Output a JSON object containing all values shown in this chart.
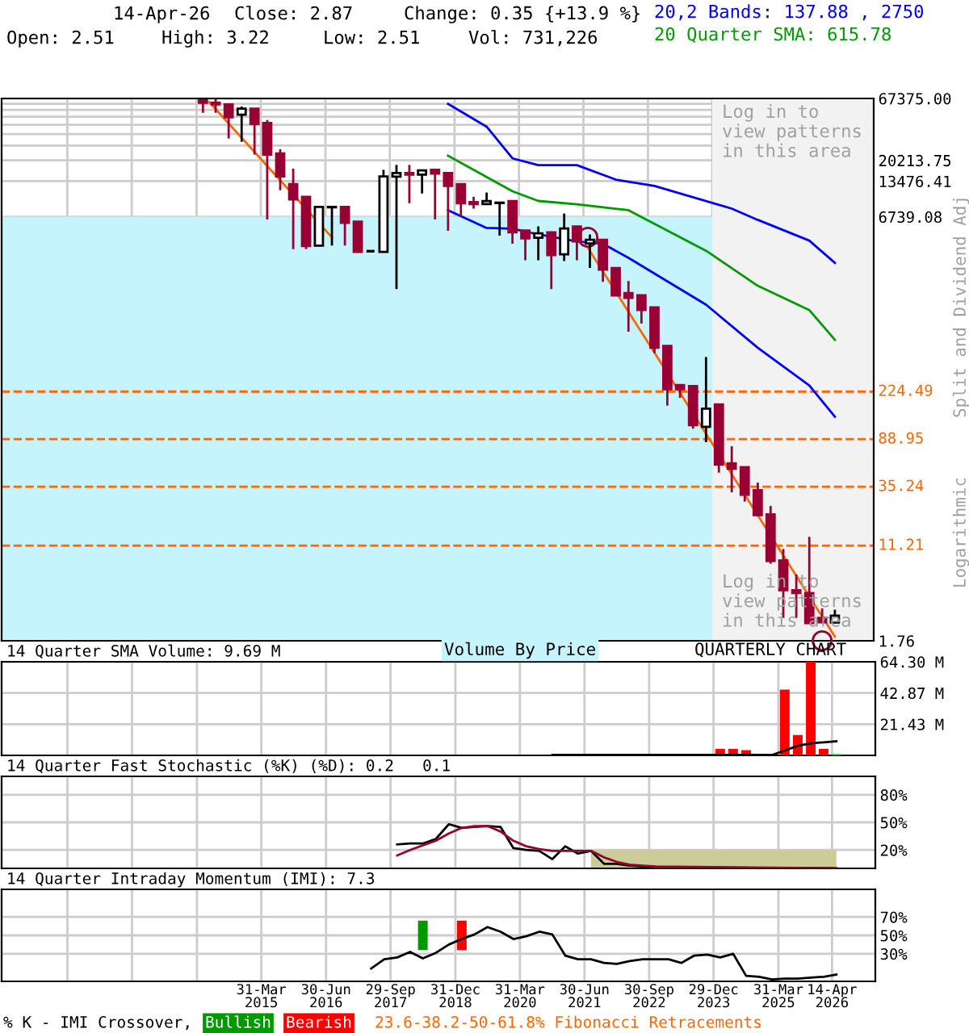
{
  "chart_data": [
    {
      "type": "candlestick",
      "log": "y",
      "grid": true,
      "tick_labels": "y",
      "xlim": [
        "2010-03-22",
        "2027-02-14"
      ],
      "ylim": [
        1.76,
        67375
      ],
      "xticks": [
        {
          "value": "2011-06-30",
          "label": null
        },
        {
          "value": "2012-09-28",
          "label": null
        },
        {
          "value": "2013-12-31",
          "label": null
        },
        {
          "value": "2015-03-31",
          "label": null
        },
        {
          "value": "2016-06-30",
          "label": null
        },
        {
          "value": "2017-09-29",
          "label": null
        },
        {
          "value": "2018-12-31",
          "label": null
        },
        {
          "value": "2020-03-31",
          "label": null
        },
        {
          "value": "2021-06-30",
          "label": null
        },
        {
          "value": "2022-09-30",
          "label": null
        },
        {
          "value": "2023-12-29",
          "label": null
        },
        {
          "value": "2025-03-31",
          "label": null
        },
        {
          "value": "2026-04-14",
          "label": null
        }
      ],
      "yticks": [
        1.76,
        6739.08,
        13476.41,
        20213.75,
        {
          "value": 26951.08,
          "label": null
        },
        {
          "value": 33688.41,
          "label": null
        },
        {
          "value": 40425.74,
          "label": null
        },
        {
          "value": 47163.07,
          "label": null
        },
        {
          "value": 53900.4,
          "label": null
        },
        {
          "value": 60637.73,
          "label": null
        },
        {
          "value": 67375,
          "label": "67375.00"
        }
      ],
      "bands": [
        {
          "axis": "y",
          "from": 1.76,
          "to": 6739.08,
          "color": "#c6f4fc"
        },
        {
          "axis": "x",
          "from": "2023-12-29",
          "to": "2027-02-14",
          "color": "#f2f2f2"
        }
      ],
      "ref_lines": [
        {
          "axis": "y",
          "value": 224.49,
          "label": "224.49",
          "color": "#ff6600",
          "line_style": "dashed"
        },
        {
          "axis": "y",
          "value": 88.95,
          "label": "88.95",
          "color": "#ff6600",
          "line_style": "dashed"
        },
        {
          "axis": "y",
          "value": 35.24,
          "label": "35.24",
          "color": "#ff6600",
          "line_style": "dashed"
        },
        {
          "axis": "y",
          "value": 11.21,
          "label": "11.21",
          "color": "#ff6600",
          "line_style": "dashed"
        }
      ],
      "series": [
        {
          "type": "line",
          "color": "#0000ff",
          "x": [
            "2018-11-15",
            "2019-08-15",
            "2020-02-14",
            "2020-08-15",
            "2021-05-15",
            "2022-02-14",
            "2022-11-15",
            "2024-05-15",
            "2024-11-15",
            "2025-11-15",
            "2026-05-15"
          ],
          "values": [
            60700,
            38900,
            21000,
            18400,
            18400,
            13900,
            12300,
            7900,
            6350,
            4240,
            2750
          ]
        },
        {
          "type": "line",
          "color": "#009900",
          "x": [
            "2018-11-15",
            "2020-02-14",
            "2020-08-15",
            "2021-05-15",
            "2022-05-15",
            "2023-11-15",
            "2024-11-15",
            "2025-11-15",
            "2026-05-15"
          ],
          "values": [
            22150,
            11070,
            9170,
            8600,
            7660,
            3480,
            1760,
            1097,
            615.78
          ]
        },
        {
          "type": "line",
          "color": "#0000ff",
          "x": [
            "2018-11-15",
            "2019-08-15",
            "2020-02-14",
            "2020-08-15",
            "2021-05-15",
            "2021-11-15",
            "2022-05-15",
            "2023-11-15",
            "2024-11-15",
            "2025-11-15",
            "2026-05-15"
          ],
          "values": [
            7660,
            5420,
            5350,
            4780,
            4170,
            3990,
            3030,
            1220,
            527,
            253,
            137.88
          ]
        },
        {
          "type": "line",
          "color": "#ff6600",
          "x": [
            "2014-03-31",
            "2016-08-15"
          ],
          "values": [
            62800,
            4520
          ]
        },
        {
          "type": "line",
          "color": "#ff6600",
          "x": [
            "2021-08-01",
            "2026-05-15"
          ],
          "values": [
            3680,
            1.91
          ]
        },
        {
          "type": "scatter",
          "marker": "circle",
          "color": "#990033",
          "x": [
            "2021-08-01",
            "2026-02-14"
          ],
          "values": [
            4520,
            1.76
          ]
        },
        {
          "colors": [
            "#990033",
            "#990033",
            "#990033",
            "#ffffff",
            "#990033",
            "#990033",
            "#990033",
            "#990033",
            "#990033",
            "#ffffff",
            "#ffffff",
            "#990033",
            "#990033",
            "#000000",
            "#ffffff",
            "#ffffff",
            "#990033",
            "#ffffff",
            "#990033",
            "#990033",
            "#990033",
            "#990033",
            "#ffffff",
            "#ffffff",
            "#990033",
            "#990033",
            "#ffffff",
            "#990033",
            "#ffffff",
            "#990033",
            "#ffffff",
            "#990033",
            "#990033",
            "#990033",
            "#990033",
            "#990033",
            "#990033",
            "#990033",
            "#990033",
            "#ffffff",
            "#990033",
            "#990033",
            "#990033",
            "#990033",
            "#990033",
            "#990033",
            "#990033",
            "#990033",
            "#990033",
            "#ffffff"
          ],
          "x": [
            "2014-02-14",
            "2014-05-15",
            "2014-08-15",
            "2014-11-15",
            "2015-02-14",
            "2015-05-15",
            "2015-08-15",
            "2015-11-15",
            "2016-02-14",
            "2016-05-15",
            "2016-08-15",
            "2016-11-15",
            "2017-02-14",
            "2017-05-15",
            "2017-08-15",
            "2017-11-15",
            "2018-02-14",
            "2018-05-15",
            "2018-08-15",
            "2018-11-15",
            "2019-02-14",
            "2019-05-15",
            "2019-08-15",
            "2019-11-15",
            "2020-02-14",
            "2020-05-15",
            "2020-08-15",
            "2020-11-15",
            "2021-02-14",
            "2021-05-15",
            "2021-08-15",
            "2021-11-15",
            "2022-02-14",
            "2022-05-15",
            "2022-08-15",
            "2022-11-15",
            "2023-02-14",
            "2023-05-15",
            "2023-08-15",
            "2023-11-15",
            "2024-02-14",
            "2024-05-15",
            "2024-08-15",
            "2024-11-15",
            "2025-02-14",
            "2025-05-15",
            "2025-08-15",
            "2025-11-15",
            "2026-02-14",
            "2026-05-15"
          ],
          "ohlc": [
            [
              65000,
              66000,
              51000,
              62000
            ],
            [
              62000,
              67000,
              51000,
              60000
            ],
            [
              60000,
              60000,
              30900,
              46600
            ],
            [
              49100,
              57600,
              29000,
              55300
            ],
            [
              55300,
              55300,
              22600,
              41000
            ],
            [
              41800,
              44300,
              6400,
              22600
            ],
            [
              23100,
              25100,
              11300,
              14800
            ],
            [
              12700,
              17200,
              3590,
              9460
            ],
            [
              9950,
              9950,
              3590,
              3820
            ],
            [
              3850,
              8160,
              3850,
              8160
            ],
            [
              8100,
              8160,
              3850,
              8160
            ],
            [
              8160,
              8160,
              3850,
              6000
            ],
            [
              6140,
              6140,
              3400,
              3400
            ],
            [
              3450,
              3450,
              3450,
              3450
            ],
            [
              3400,
              16800,
              3400,
              14800
            ],
            [
              14700,
              18500,
              1650,
              15800
            ],
            [
              15800,
              18500,
              8770,
              15300
            ],
            [
              15300,
              16600,
              10600,
              16600
            ],
            [
              16800,
              17200,
              6400,
              15600
            ],
            [
              15800,
              15800,
              5140,
              12300
            ],
            [
              12700,
              12700,
              6750,
              8770
            ],
            [
              8970,
              9950,
              7910,
              8620
            ],
            [
              8620,
              10800,
              8620,
              9150
            ],
            [
              8800,
              8880,
              4670,
              8880
            ],
            [
              9150,
              9150,
              3990,
              4980
            ],
            [
              5150,
              5150,
              2890,
              4420
            ],
            [
              4480,
              5590,
              2890,
              4890
            ],
            [
              4970,
              4970,
              1650,
              3200
            ],
            [
              3250,
              7180,
              2850,
              5370
            ],
            [
              5590,
              5590,
              2890,
              4170
            ],
            [
              4020,
              4780,
              2490,
              4300
            ],
            [
              4300,
              4300,
              1900,
              2410
            ],
            [
              2490,
              2490,
              1460,
              1460
            ],
            [
              1530,
              1930,
              720,
              1390
            ],
            [
              1460,
              1460,
              845,
              1097
            ],
            [
              1158,
              1158,
              475,
              527
            ],
            [
              545,
              545,
              171,
              235
            ],
            [
              255,
              255,
              199,
              235
            ],
            [
              250,
              250,
              109,
              117
            ],
            [
              113,
              440,
              84,
              161
            ],
            [
              175,
              175,
              46.4,
              54.3
            ],
            [
              55.5,
              77.6,
              31.6,
              50
            ],
            [
              51.5,
              51.5,
              26.4,
              30.2
            ],
            [
              33,
              38.2,
              20.3,
              20.3
            ],
            [
              20.6,
              24.3,
              7.9,
              8.3
            ],
            [
              8.4,
              10.5,
              2.75,
              4.7
            ],
            [
              4.7,
              6.4,
              2.75,
              4.45
            ],
            [
              4.45,
              13.3,
              2.48,
              2.48
            ],
            [
              2.75,
              3.31,
              2.52,
              2.52
            ],
            [
              2.51,
              3.22,
              2.51,
              2.87
            ]
          ]
        }
      ],
      "annotations": [
        "14-Apr-26",
        "Close: 2.87",
        "Change: 0.35 {+13.9 %}",
        "Open: 2.51",
        "High: 3.22",
        "Low: 2.51",
        "Vol: 731,226",
        "20,2 Bands: 137.88 , 2750",
        "20 Quarter SMA: 615.78",
        "Log in to\nview patterns\nin this area",
        "Log in to\nview patterns\nin this area",
        "Split and Dividend Adj",
        "Logarithmic"
      ]
    },
    {
      "type": "bar",
      "title": "14 Quarter SMA Volume: 9.69 M",
      "grid": true,
      "tick_labels": "y",
      "xlim": [
        "2010-03-22",
        "2027-02-14"
      ],
      "ylim": [
        0,
        64.3
      ],
      "xticks": [
        {
          "value": "2011-06-30",
          "label": null
        },
        {
          "value": "2012-09-28",
          "label": null
        },
        {
          "value": "2013-12-31",
          "label": null
        },
        {
          "value": "2015-03-31",
          "label": null
        },
        {
          "value": "2016-06-30",
          "label": null
        },
        {
          "value": "2017-09-29",
          "label": null
        },
        {
          "value": "2018-12-31",
          "label": null
        },
        {
          "value": "2020-03-31",
          "label": null
        },
        {
          "value": "2021-06-30",
          "label": null
        },
        {
          "value": "2022-09-30",
          "label": null
        },
        {
          "value": "2023-12-29",
          "label": null
        },
        {
          "value": "2025-03-31",
          "label": null
        },
        {
          "value": "2026-04-14",
          "label": null
        }
      ],
      "yticks": [
        {
          "value": 21.43,
          "label": "21.43 M"
        },
        {
          "value": 42.87,
          "label": "42.87 M"
        },
        {
          "value": 64.3,
          "label": "64.30 M"
        }
      ],
      "series": [
        {
          "x": [
            "2024-02-14",
            "2024-05-15",
            "2024-08-15",
            "2024-11-15",
            "2025-02-14",
            "2025-05-15",
            "2025-08-15",
            "2025-11-15",
            "2026-02-14",
            "2026-05-15"
          ],
          "values": [
            4.5,
            4.5,
            3.6,
            null,
            null,
            45.2,
            14.0,
            64.3,
            4.5,
            0.9
          ],
          "colors": [
            "#ff0000",
            "#ff0000",
            "#ff0000",
            "#ff0000",
            "#ff0000",
            "#ff0000",
            "#ff0000",
            "#ff0000",
            "#ff0000",
            "#00cc00"
          ]
        },
        {
          "type": "line",
          "color": "#000000",
          "x": [
            "2020-11-15",
            "2024-11-15",
            "2025-02-14",
            "2025-05-15",
            "2025-08-15",
            "2025-11-15",
            "2026-02-14",
            "2026-05-15"
          ],
          "values": [
            0.3,
            0.3,
            0.3,
            3.3,
            6.6,
            8.3,
            9.0,
            9.69
          ]
        }
      ],
      "annotations": [
        "Volume By Price",
        "QUARTERLY CHART"
      ]
    },
    {
      "type": "line",
      "title": "14 Quarter Fast Stochastic (%K) (%D): 0.2   0.1",
      "grid": true,
      "tick_labels": "y",
      "xlim": [
        "2010-03-22",
        "2027-02-14"
      ],
      "ylim": [
        0,
        100
      ],
      "xticks": [
        {
          "value": "2011-06-30",
          "label": null
        },
        {
          "value": "2012-09-28",
          "label": null
        },
        {
          "value": "2013-12-31",
          "label": null
        },
        {
          "value": "2015-03-31",
          "label": null
        },
        {
          "value": "2016-06-30",
          "label": null
        },
        {
          "value": "2017-09-29",
          "label": null
        },
        {
          "value": "2018-12-31",
          "label": null
        },
        {
          "value": "2020-03-31",
          "label": null
        },
        {
          "value": "2021-06-30",
          "label": null
        },
        {
          "value": "2022-09-30",
          "label": null
        },
        {
          "value": "2023-12-29",
          "label": null
        },
        {
          "value": "2025-03-31",
          "label": null
        },
        {
          "value": "2026-04-14",
          "label": null
        }
      ],
      "yticks": [
        {
          "value": 20,
          "label": "20%"
        },
        {
          "value": 50,
          "label": "50%"
        },
        {
          "value": 80,
          "label": "80%"
        }
      ],
      "series": [
        {
          "type": "area",
          "color": "#cccc99",
          "x": [
            "2021-08-15",
            "2021-11-15",
            "2022-02-14",
            "2022-05-15",
            "2022-08-15",
            "2022-11-15",
            "2023-02-14",
            "2023-05-15",
            "2023-08-15",
            "2023-11-15",
            "2024-02-14",
            "2024-05-15",
            "2024-08-15",
            "2024-11-15",
            "2025-02-14",
            "2025-05-15",
            "2025-08-15",
            "2025-11-15",
            "2026-02-14",
            "2026-05-15"
          ],
          "values": [
            20,
            20,
            20,
            20,
            20,
            20,
            20,
            20,
            20,
            20,
            20,
            20,
            20,
            20,
            20,
            20,
            20,
            20,
            20,
            20
          ]
        },
        {
          "color": "#000000",
          "x": [
            "2017-11-15",
            "2018-02-14",
            "2018-05-15",
            "2018-08-15",
            "2018-11-15",
            "2019-02-14",
            "2019-05-15",
            "2019-08-15",
            "2019-11-15",
            "2020-02-14",
            "2020-05-15",
            "2020-08-15",
            "2020-11-15",
            "2021-02-14",
            "2021-05-15",
            "2021-08-15",
            "2021-11-15",
            "2022-02-14",
            "2022-05-15",
            "2022-08-15",
            "2022-11-15",
            "2023-11-15",
            "2024-11-15",
            "2025-11-15",
            "2026-05-15"
          ],
          "values": [
            26,
            27,
            27,
            32,
            48,
            44,
            45,
            46,
            45,
            22,
            20,
            19,
            10,
            24,
            16,
            19,
            5,
            5,
            3,
            2,
            1,
            1,
            0.5,
            0.5,
            0.2
          ]
        },
        {
          "color": "#990033",
          "x": [
            "2017-11-15",
            "2018-02-14",
            "2018-05-15",
            "2018-08-15",
            "2018-11-15",
            "2019-02-14",
            "2019-05-15",
            "2019-08-15",
            "2019-11-15",
            "2020-02-14",
            "2020-05-15",
            "2020-08-15",
            "2020-11-15",
            "2021-02-14",
            "2021-05-15",
            "2021-08-15",
            "2021-11-15",
            "2022-02-14",
            "2022-05-15",
            "2022-08-15",
            "2022-11-15",
            "2024-08-15",
            "2026-05-15"
          ],
          "values": [
            14,
            20,
            25,
            30,
            38,
            44,
            46,
            46,
            40,
            30,
            24,
            21,
            19,
            19,
            19,
            19,
            12,
            7,
            4,
            3,
            2,
            1,
            0.1
          ]
        }
      ]
    },
    {
      "type": "line",
      "title": "14 Quarter Intraday Momentum (IMI): 7.3",
      "grid": true,
      "xlim": [
        "2010-03-22",
        "2027-02-14"
      ],
      "ylim": [
        0,
        100
      ],
      "xticks": [
        {
          "value": "2011-06-30",
          "label": null
        },
        {
          "value": "2012-09-28",
          "label": null
        },
        {
          "value": "2013-12-31",
          "label": null
        },
        {
          "value": "2015-03-31",
          "label": "31-Mar\n2015"
        },
        {
          "value": "2016-06-30",
          "label": "30-Jun\n2016"
        },
        {
          "value": "2017-09-29",
          "label": "29-Sep\n2017"
        },
        {
          "value": "2018-12-31",
          "label": "31-Dec\n2018"
        },
        {
          "value": "2020-03-31",
          "label": "31-Mar\n2020"
        },
        {
          "value": "2021-06-30",
          "label": "30-Jun\n2021"
        },
        {
          "value": "2022-09-30",
          "label": "30-Sep\n2022"
        },
        {
          "value": "2023-12-29",
          "label": "29-Dec\n2023"
        },
        {
          "value": "2025-03-31",
          "label": "31-Mar\n2025"
        },
        {
          "value": "2026-04-14",
          "label": "14-Apr\n2026"
        }
      ],
      "yticks": [
        {
          "value": 30,
          "label": "30%"
        },
        {
          "value": 50,
          "label": "50%"
        },
        {
          "value": 70,
          "label": "70%"
        }
      ],
      "series": [
        {
          "color": "#000000",
          "x": [
            "2017-05-15",
            "2017-08-15",
            "2017-11-15",
            "2018-02-14",
            "2018-05-15",
            "2018-08-15",
            "2018-11-15",
            "2019-02-14",
            "2019-05-15",
            "2019-08-15",
            "2019-11-15",
            "2020-02-14",
            "2020-05-15",
            "2020-08-15",
            "2020-11-15",
            "2021-02-14",
            "2021-05-15",
            "2021-08-15",
            "2021-11-15",
            "2022-02-14",
            "2022-05-15",
            "2022-08-15",
            "2022-11-15",
            "2023-02-14",
            "2023-05-15",
            "2023-08-15",
            "2023-11-15",
            "2024-02-14",
            "2024-05-15",
            "2024-08-15",
            "2024-11-15",
            "2025-02-14",
            "2025-05-15",
            "2025-08-15",
            "2025-11-15",
            "2026-02-14",
            "2026-05-15"
          ],
          "values": [
            14,
            24,
            26,
            32,
            25,
            31,
            40,
            46,
            51,
            59,
            54,
            46,
            49,
            54,
            51,
            28,
            24,
            24,
            20,
            19,
            22,
            24,
            24,
            24,
            20,
            28,
            29,
            26,
            30,
            6,
            5,
            2,
            3,
            3,
            4,
            5,
            7.3
          ]
        },
        {
          "type": "bar",
          "x": [
            "2018-05-15",
            "2019-02-14"
          ],
          "base": [
            34,
            34
          ],
          "values": [
            32,
            32
          ],
          "colors": [
            "#009900",
            "#ff0000"
          ]
        }
      ],
      "annotations": [
        "% K - IMI Crossover,",
        "Bullish",
        "Bearish",
        "23.6-38.2-50-61.8% Fibonacci Retracements"
      ]
    }
  ]
}
